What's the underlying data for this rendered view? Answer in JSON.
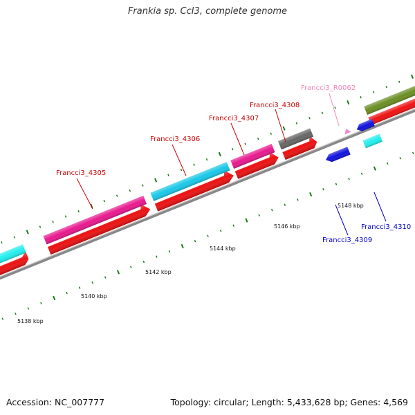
{
  "title": "Frankia sp. CcI3, complete genome",
  "footer": {
    "accession": "Accession: NC_007777",
    "topology": "Topology: circular; Length: 5,433,628 bp; Genes: 4,569"
  },
  "colors": {
    "cds": "#ee1111",
    "backbone": "#888888",
    "tick": "#1a7a1a",
    "label_red": "#cc0000",
    "label_blue": "#0000cc",
    "label_pink": "#ee88bb"
  },
  "scale_labels": [
    {
      "text": "5138 kbp"
    },
    {
      "text": "5140 kbp"
    },
    {
      "text": "5142 kbp"
    },
    {
      "text": "5144 kbp"
    },
    {
      "text": "5146 kbp"
    },
    {
      "text": "5148 kbp"
    }
  ],
  "gene_labels": {
    "g4305": "Francci3_4305",
    "g4306": "Francci3_4306",
    "g4307": "Francci3_4307",
    "g4308": "Francci3_4308",
    "r0062": "Francci3_R0062",
    "g4309": "Francci3_4309",
    "g4310": "Francci3_4310"
  },
  "feature_colors": {
    "magenta": "#e8188e",
    "cyan": "#18c8e8",
    "gray": "#666666",
    "blue": "#1111dd",
    "aqua": "#22eeee",
    "olive": "#6b8e23"
  }
}
